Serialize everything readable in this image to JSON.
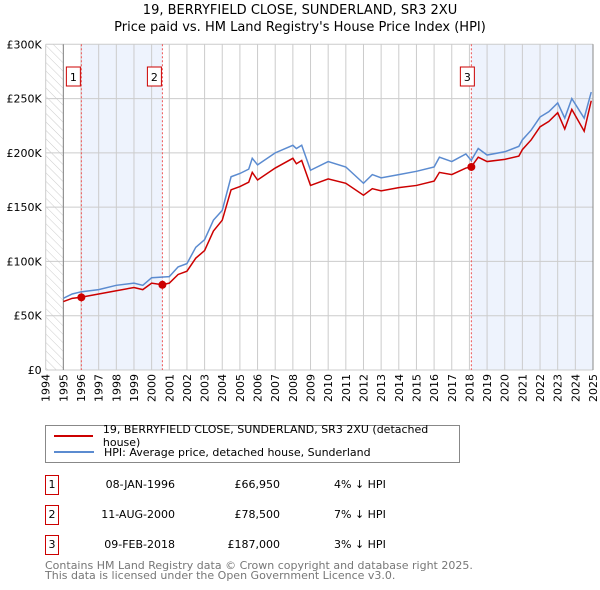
{
  "title_line1": "19, BERRYFIELD CLOSE, SUNDERLAND, SR3 2XU",
  "title_line2": "Price paid vs. HM Land Registry's House Price Index (HPI)",
  "chart_data": {
    "type": "line",
    "title": "19, BERRYFIELD CLOSE, SUNDERLAND, SR3 2XU — Price paid vs. HM Land Registry's House Price Index (HPI)",
    "xlim": [
      1994,
      2025
    ],
    "ylim": [
      0,
      300000
    ],
    "x_ticks": [
      "1994",
      "1995",
      "1996",
      "1997",
      "1998",
      "1999",
      "2000",
      "2001",
      "2002",
      "2003",
      "2004",
      "2005",
      "2006",
      "2007",
      "2008",
      "2009",
      "2010",
      "2011",
      "2012",
      "2013",
      "2014",
      "2015",
      "2016",
      "2017",
      "2018",
      "2019",
      "2020",
      "2021",
      "2022",
      "2023",
      "2024",
      "2025"
    ],
    "y_ticks": [
      {
        "v": 0,
        "l": "£0"
      },
      {
        "v": 50000,
        "l": "£50K"
      },
      {
        "v": 100000,
        "l": "£100K"
      },
      {
        "v": 150000,
        "l": "£150K"
      },
      {
        "v": 200000,
        "l": "£200K"
      },
      {
        "v": 250000,
        "l": "£250K"
      },
      {
        "v": 300000,
        "l": "£300K"
      }
    ],
    "grid": true,
    "series": [
      {
        "name": "HPI: Average price, detached house, Sunderland",
        "color": "#5b8bd0",
        "x": [
          1995,
          1995.5,
          1996,
          1997,
          1998,
          1999,
          1999.5,
          2000,
          2001,
          2001.5,
          2002,
          2002.5,
          2003,
          2003.5,
          2004,
          2004.5,
          2005,
          2005.5,
          2005.7,
          2006,
          2007,
          2008,
          2008.2,
          2008.5,
          2009,
          2010,
          2011,
          2012,
          2012.5,
          2013,
          2014,
          2015,
          2016,
          2016.3,
          2017,
          2017.8,
          2018.1,
          2018.5,
          2019,
          2020,
          2020.8,
          2021,
          2021.5,
          2022,
          2022.5,
          2023,
          2023.4,
          2023.8,
          2024.5,
          2024.9
        ],
        "y": [
          66000,
          70000,
          72000,
          74000,
          78000,
          80000,
          78000,
          85000,
          86000,
          95000,
          98000,
          113000,
          120000,
          138000,
          147000,
          178000,
          181000,
          185000,
          195000,
          189000,
          200000,
          207000,
          204000,
          207000,
          184000,
          192000,
          187000,
          172000,
          180000,
          177000,
          180000,
          183000,
          187000,
          196000,
          192000,
          199000,
          193000,
          204000,
          198000,
          201000,
          206000,
          212000,
          221000,
          233000,
          238000,
          246000,
          232000,
          250000,
          232000,
          256000
        ]
      },
      {
        "name": "19, BERRYFIELD CLOSE, SUNDERLAND, SR3 2XU (detached house)",
        "color": "#cc0000",
        "x": [
          1995,
          1995.5,
          1996,
          1997,
          1998,
          1999,
          1999.5,
          2000,
          2000.6,
          2001,
          2001.5,
          2002,
          2002.5,
          2003,
          2003.5,
          2004,
          2004.5,
          2005,
          2005.5,
          2005.7,
          2006,
          2007,
          2008,
          2008.2,
          2008.5,
          2009,
          2010,
          2011,
          2012,
          2012.5,
          2013,
          2014,
          2015,
          2016,
          2016.3,
          2017,
          2017.8,
          2018.1,
          2018.5,
          2019,
          2020,
          2020.8,
          2021,
          2021.5,
          2022,
          2022.5,
          2023,
          2023.4,
          2023.8,
          2024.5,
          2024.9
        ],
        "y": [
          63000,
          66000,
          67000,
          70000,
          73000,
          76000,
          74000,
          80000,
          78500,
          80000,
          88000,
          91000,
          103000,
          110000,
          128000,
          138000,
          166000,
          169000,
          173000,
          182000,
          175000,
          186000,
          195000,
          190000,
          193000,
          170000,
          176000,
          172000,
          161000,
          167000,
          165000,
          168000,
          170000,
          174000,
          182000,
          180000,
          186000,
          187000,
          196000,
          192000,
          194000,
          197000,
          203000,
          212000,
          224000,
          229000,
          237000,
          222000,
          240000,
          220000,
          248000
        ]
      }
    ],
    "sales": [
      {
        "label": "1",
        "x": 1996.02,
        "y": 66950
      },
      {
        "label": "2",
        "x": 2000.61,
        "y": 78500
      },
      {
        "label": "3",
        "x": 2018.11,
        "y": 187000
      }
    ],
    "shaded_ranges": [
      [
        1996.02,
        2000.61
      ],
      [
        2018.11,
        2025
      ]
    ],
    "hatched_range": [
      1994,
      1995
    ]
  },
  "legend": {
    "property": "19, BERRYFIELD CLOSE, SUNDERLAND, SR3 2XU (detached house)",
    "hpi": "HPI: Average price, detached house, Sunderland"
  },
  "sales_table": [
    {
      "num": "1",
      "date": "08-JAN-1996",
      "price": "£66,950",
      "hpi": "4% ↓ HPI"
    },
    {
      "num": "2",
      "date": "11-AUG-2000",
      "price": "£78,500",
      "hpi": "7% ↓ HPI"
    },
    {
      "num": "3",
      "date": "09-FEB-2018",
      "price": "£187,000",
      "hpi": "3% ↓ HPI"
    }
  ],
  "footer": {
    "line1": "Contains HM Land Registry data © Crown copyright and database right 2025.",
    "line2": "This data is licensed under the Open Government Licence v3.0."
  }
}
